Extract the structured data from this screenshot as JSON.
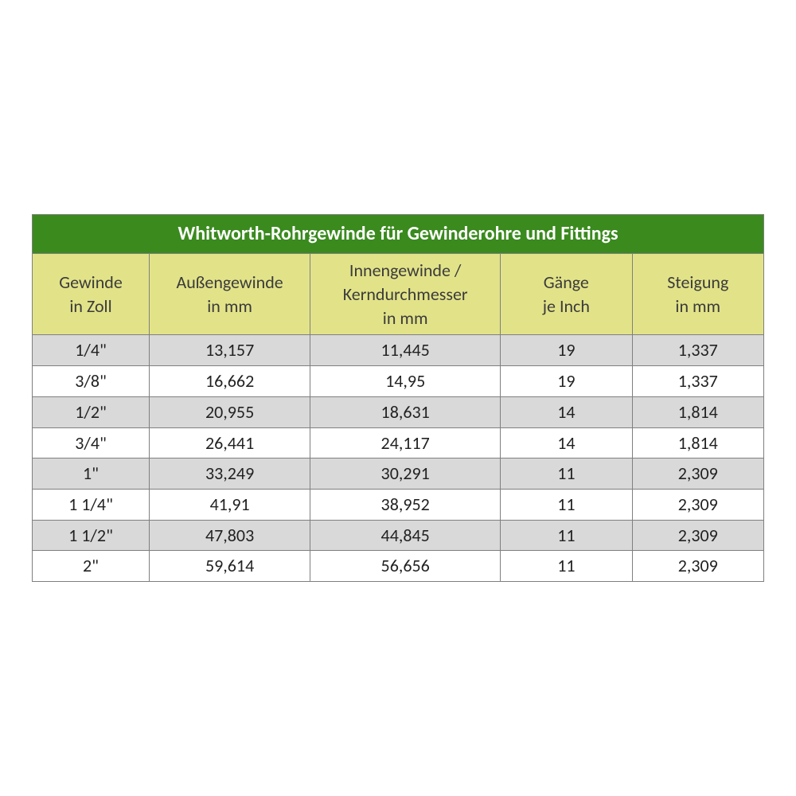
{
  "table": {
    "type": "table",
    "title": "Whitworth-Rohrgewinde für Gewinderohre und Fittings",
    "title_bg": "#3a8a1e",
    "title_color": "#ffffff",
    "header_bg": "#e2e389",
    "header_color": "#3b3b3b",
    "row_odd_bg": "#d9d9d9",
    "row_even_bg": "#ffffff",
    "border_color": "#7f7f7f",
    "title_fontsize": 24,
    "header_fontsize": 22,
    "cell_fontsize": 22,
    "column_widths_pct": [
      16,
      22,
      26,
      18,
      18
    ],
    "columns": [
      {
        "line1": "Gewinde",
        "line2": "in Zoll"
      },
      {
        "line1": "Außengewinde",
        "line2": "in mm"
      },
      {
        "line1": "Innengewinde /",
        "line2": "Kerndurchmesser",
        "line3": "in mm"
      },
      {
        "line1": "Gänge",
        "line2": "je Inch"
      },
      {
        "line1": "Steigung",
        "line2": "in mm"
      }
    ],
    "rows": [
      [
        "1/4\"",
        "13,157",
        "11,445",
        "19",
        "1,337"
      ],
      [
        "3/8\"",
        "16,662",
        "14,95",
        "19",
        "1,337"
      ],
      [
        "1/2\"",
        "20,955",
        "18,631",
        "14",
        "1,814"
      ],
      [
        "3/4\"",
        "26,441",
        "24,117",
        "14",
        "1,814"
      ],
      [
        "1\"",
        "33,249",
        "30,291",
        "11",
        "2,309"
      ],
      [
        "1 1/4\"",
        "41,91",
        "38,952",
        "11",
        "2,309"
      ],
      [
        "1 1/2\"",
        "47,803",
        "44,845",
        "11",
        "2,309"
      ],
      [
        "2\"",
        "59,614",
        "56,656",
        "11",
        "2,309"
      ]
    ]
  }
}
